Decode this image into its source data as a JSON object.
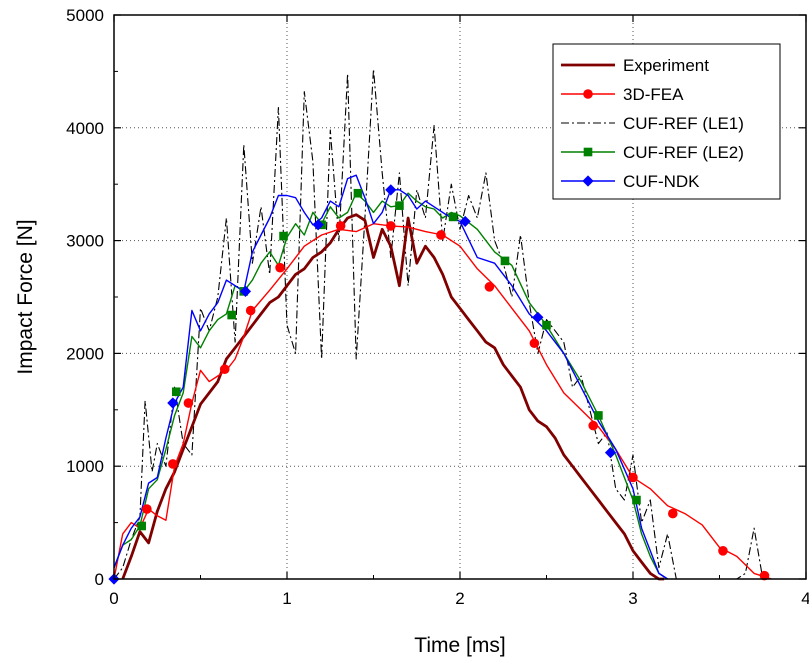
{
  "chart_data": {
    "type": "line",
    "xlabel": "Time [ms]",
    "ylabel": "Impact Force [N]",
    "xlim": [
      0,
      4
    ],
    "ylim": [
      0,
      5000
    ],
    "x_ticks": [
      0,
      1,
      2,
      3,
      4
    ],
    "y_ticks": [
      0,
      1000,
      2000,
      3000,
      4000,
      5000
    ],
    "x_tick_labels": [
      "0",
      "1",
      "2",
      "3",
      "4"
    ],
    "y_tick_labels": [
      "0",
      "1000",
      "2000",
      "3000",
      "4000",
      "5000"
    ],
    "grid": true,
    "legend_position": "top-right",
    "series": [
      {
        "name": "Experiment",
        "color": "#800000",
        "style": "solid-thick",
        "marker": "none",
        "x": [
          0.05,
          0.1,
          0.15,
          0.2,
          0.25,
          0.3,
          0.35,
          0.4,
          0.45,
          0.5,
          0.55,
          0.6,
          0.65,
          0.7,
          0.75,
          0.8,
          0.85,
          0.9,
          0.95,
          1.0,
          1.05,
          1.1,
          1.15,
          1.2,
          1.25,
          1.3,
          1.35,
          1.4,
          1.45,
          1.5,
          1.55,
          1.6,
          1.65,
          1.7,
          1.75,
          1.8,
          1.85,
          1.9,
          1.95,
          2.0,
          2.05,
          2.1,
          2.15,
          2.2,
          2.25,
          2.3,
          2.35,
          2.4,
          2.45,
          2.5,
          2.55,
          2.6,
          2.65,
          2.7,
          2.75,
          2.8,
          2.85,
          2.9,
          2.95,
          3.0,
          3.05,
          3.1,
          3.15,
          3.18
        ],
        "y": [
          0,
          200,
          420,
          320,
          600,
          800,
          950,
          1150,
          1350,
          1550,
          1650,
          1750,
          1950,
          2050,
          2150,
          2250,
          2350,
          2450,
          2500,
          2600,
          2700,
          2750,
          2850,
          2900,
          2980,
          3100,
          3200,
          3230,
          3180,
          2850,
          3100,
          2950,
          2600,
          3200,
          2800,
          2950,
          2850,
          2700,
          2500,
          2400,
          2300,
          2200,
          2100,
          2050,
          1900,
          1800,
          1700,
          1500,
          1400,
          1350,
          1250,
          1100,
          1000,
          900,
          800,
          700,
          600,
          500,
          400,
          250,
          150,
          50,
          0,
          0
        ]
      },
      {
        "name": "3D-FEA",
        "color": "#ff0000",
        "style": "solid",
        "marker": "circle",
        "x": [
          0,
          0.05,
          0.1,
          0.15,
          0.2,
          0.25,
          0.3,
          0.35,
          0.4,
          0.45,
          0.5,
          0.55,
          0.6,
          0.65,
          0.7,
          0.75,
          0.8,
          0.9,
          1.0,
          1.1,
          1.2,
          1.3,
          1.4,
          1.5,
          1.6,
          1.7,
          1.8,
          1.9,
          2.0,
          2.1,
          2.2,
          2.3,
          2.4,
          2.5,
          2.6,
          2.7,
          2.8,
          2.9,
          3.0,
          3.1,
          3.2,
          3.3,
          3.4,
          3.5,
          3.6,
          3.7,
          3.8
        ],
        "y": [
          0,
          400,
          500,
          450,
          620,
          560,
          520,
          1000,
          1200,
          1560,
          1850,
          1750,
          1800,
          1850,
          1950,
          2150,
          2380,
          2560,
          2750,
          2950,
          3050,
          3100,
          3080,
          3150,
          3130,
          3120,
          3080,
          3050,
          2950,
          2750,
          2600,
          2400,
          2200,
          1900,
          1650,
          1500,
          1350,
          1150,
          900,
          800,
          650,
          580,
          480,
          280,
          200,
          50,
          0
        ],
        "markers_x": [
          0.19,
          0.34,
          0.43,
          0.64,
          0.79,
          0.96,
          1.31,
          1.6,
          1.89,
          2.17,
          2.43,
          2.77,
          3.0,
          3.23,
          3.52,
          3.76
        ],
        "markers_y": [
          620,
          1020,
          1560,
          1860,
          2380,
          2760,
          3130,
          3130,
          3050,
          2590,
          2090,
          1360,
          900,
          580,
          250,
          30
        ]
      },
      {
        "name": "CUF-REF (LE1)",
        "color": "#000000",
        "style": "dash-dot",
        "marker": "none",
        "x": [
          0,
          0.05,
          0.1,
          0.15,
          0.18,
          0.22,
          0.25,
          0.3,
          0.35,
          0.4,
          0.45,
          0.5,
          0.55,
          0.6,
          0.65,
          0.7,
          0.75,
          0.8,
          0.85,
          0.9,
          0.95,
          1.0,
          1.05,
          1.1,
          1.15,
          1.2,
          1.25,
          1.3,
          1.35,
          1.4,
          1.45,
          1.5,
          1.55,
          1.6,
          1.65,
          1.7,
          1.75,
          1.8,
          1.85,
          1.9,
          1.95,
          2.0,
          2.05,
          2.1,
          2.15,
          2.2,
          2.25,
          2.3,
          2.35,
          2.4,
          2.45,
          2.5,
          2.55,
          2.6,
          2.65,
          2.7,
          2.75,
          2.8,
          2.85,
          2.9,
          2.95,
          3.0,
          3.05,
          3.1,
          3.15,
          3.2,
          3.25,
          3.3,
          3.35,
          3.4,
          3.45,
          3.5,
          3.55,
          3.6,
          3.65,
          3.7,
          3.75,
          3.8
        ],
        "y": [
          0,
          100,
          350,
          550,
          1580,
          950,
          1200,
          1000,
          1700,
          1200,
          1100,
          2400,
          2200,
          2500,
          3200,
          2100,
          3850,
          2800,
          3300,
          2700,
          4180,
          2250,
          2000,
          4320,
          3700,
          1950,
          3980,
          3000,
          4480,
          1950,
          3200,
          4520,
          3600,
          2850,
          3600,
          2600,
          3450,
          3200,
          4020,
          3000,
          3500,
          3100,
          3400,
          3200,
          3600,
          3000,
          2800,
          2500,
          3050,
          2450,
          2000,
          2300,
          2200,
          2100,
          1700,
          1800,
          1500,
          1200,
          1300,
          800,
          700,
          1100,
          500,
          700,
          100,
          400,
          0,
          0,
          0,
          0,
          0,
          0,
          0,
          0,
          50,
          450,
          0,
          0
        ]
      },
      {
        "name": "CUF-REF (LE2)",
        "color": "#008000",
        "style": "solid",
        "marker": "square",
        "x": [
          0,
          0.05,
          0.1,
          0.15,
          0.2,
          0.25,
          0.3,
          0.35,
          0.4,
          0.45,
          0.5,
          0.55,
          0.6,
          0.65,
          0.7,
          0.75,
          0.8,
          0.85,
          0.9,
          0.95,
          1.0,
          1.05,
          1.1,
          1.15,
          1.2,
          1.25,
          1.3,
          1.35,
          1.4,
          1.45,
          1.5,
          1.55,
          1.6,
          1.65,
          1.7,
          1.75,
          1.8,
          1.85,
          1.9,
          1.95,
          2.0,
          2.1,
          2.2,
          2.3,
          2.4,
          2.5,
          2.6,
          2.7,
          2.8,
          2.9,
          3.0,
          3.05,
          3.1,
          3.15,
          3.2
        ],
        "y": [
          100,
          300,
          350,
          470,
          800,
          880,
          1150,
          1450,
          1650,
          2150,
          2050,
          2200,
          2300,
          2350,
          2600,
          2550,
          2650,
          2800,
          2900,
          2780,
          3030,
          3150,
          3050,
          3250,
          3150,
          3300,
          3200,
          3250,
          3420,
          3350,
          3250,
          3350,
          3300,
          3310,
          3420,
          3350,
          3300,
          3280,
          3200,
          3250,
          3220,
          3100,
          2900,
          2780,
          2450,
          2250,
          2000,
          1750,
          1450,
          1100,
          700,
          400,
          200,
          50,
          0
        ],
        "markers_x": [
          0.16,
          0.36,
          0.68,
          0.75,
          0.98,
          1.2,
          1.41,
          1.65,
          1.96,
          2.26,
          2.5,
          2.8,
          3.02
        ],
        "markers_y": [
          470,
          1660,
          2340,
          2550,
          3040,
          3140,
          3420,
          3310,
          3210,
          2820,
          2250,
          1450,
          700
        ]
      },
      {
        "name": "CUF-NDK",
        "color": "#0000ff",
        "style": "solid",
        "marker": "diamond",
        "x": [
          0,
          0.05,
          0.1,
          0.15,
          0.2,
          0.25,
          0.3,
          0.35,
          0.4,
          0.45,
          0.5,
          0.55,
          0.6,
          0.65,
          0.7,
          0.75,
          0.8,
          0.85,
          0.9,
          0.95,
          1.0,
          1.05,
          1.1,
          1.15,
          1.2,
          1.25,
          1.3,
          1.35,
          1.4,
          1.45,
          1.5,
          1.55,
          1.6,
          1.65,
          1.7,
          1.75,
          1.8,
          1.85,
          1.9,
          1.95,
          2.0,
          2.1,
          2.2,
          2.3,
          2.4,
          2.5,
          2.6,
          2.7,
          2.8,
          2.9,
          3.0,
          3.05,
          3.1,
          3.15,
          3.2
        ],
        "y": [
          100,
          300,
          450,
          550,
          850,
          900,
          1250,
          1560,
          1700,
          2380,
          2200,
          2350,
          2450,
          2650,
          2600,
          2550,
          2900,
          3050,
          3200,
          3400,
          3400,
          3380,
          3250,
          3140,
          3200,
          3350,
          3300,
          3550,
          3580,
          3380,
          3150,
          3250,
          3450,
          3450,
          3400,
          3280,
          3350,
          3300,
          3250,
          3200,
          3170,
          2850,
          2800,
          2600,
          2350,
          2200,
          2000,
          1700,
          1400,
          1150,
          800,
          450,
          250,
          50,
          0
        ],
        "markers_x": [
          0.0,
          0.34,
          0.76,
          1.18,
          1.6,
          2.03,
          2.45,
          2.87
        ],
        "markers_y": [
          0,
          1560,
          2550,
          3140,
          3450,
          3170,
          2320,
          1120
        ]
      }
    ]
  }
}
